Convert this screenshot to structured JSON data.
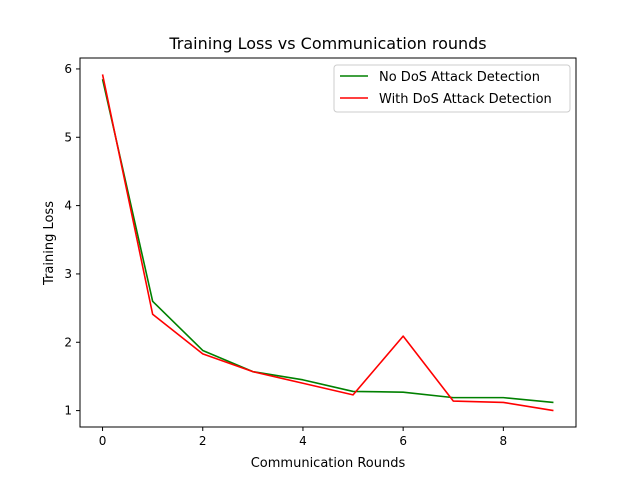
{
  "chart_data": {
    "type": "line",
    "title": "Training Loss vs Communication rounds",
    "xlabel": "Communication Rounds",
    "ylabel": "Training Loss",
    "xlim": [
      -0.45,
      9.45
    ],
    "ylim": [
      0.76,
      6.16
    ],
    "xticks": [
      0,
      2,
      4,
      6,
      8
    ],
    "yticks": [
      1,
      2,
      3,
      4,
      5,
      6
    ],
    "grid": false,
    "legend_position": "top-right",
    "x": [
      0,
      1,
      2,
      3,
      4,
      5,
      6,
      7,
      8,
      9
    ],
    "series": [
      {
        "name": "No DoS Attack Detection",
        "color": "#008000",
        "values": [
          5.85,
          2.6,
          1.88,
          1.57,
          1.45,
          1.28,
          1.27,
          1.19,
          1.19,
          1.12
        ]
      },
      {
        "name": "With DoS Attack Detection",
        "color": "#ff0000",
        "values": [
          5.92,
          2.41,
          1.83,
          1.57,
          1.4,
          1.23,
          2.09,
          1.14,
          1.12,
          1.0
        ]
      }
    ]
  }
}
